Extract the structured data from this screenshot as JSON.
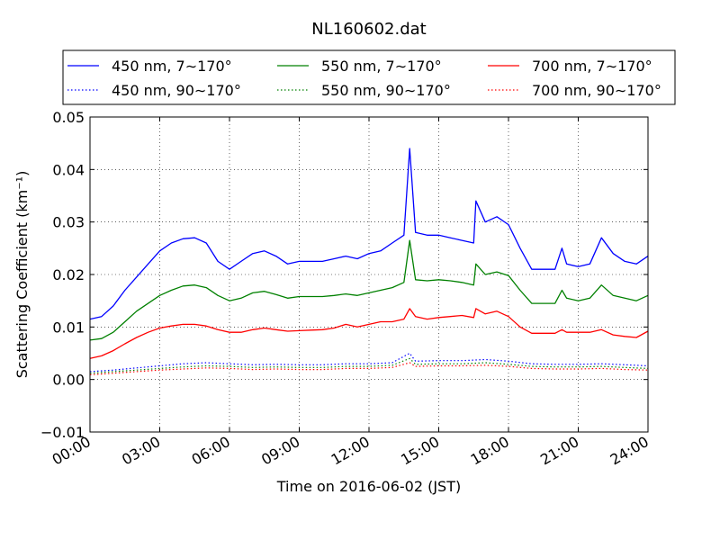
{
  "chart_data": {
    "type": "line",
    "title": "NL160602.dat",
    "xlabel": "Time on 2016-06-02 (JST)",
    "ylabel": "Scattering Coefficient (km⁻¹)",
    "xlim": [
      0,
      24
    ],
    "ylim": [
      -0.01,
      0.05
    ],
    "x_ticks": [
      0,
      3,
      6,
      9,
      12,
      15,
      18,
      21,
      24
    ],
    "x_tick_labels": [
      "00:00",
      "03:00",
      "06:00",
      "09:00",
      "12:00",
      "15:00",
      "18:00",
      "21:00",
      "24:00"
    ],
    "y_ticks": [
      -0.01,
      0.0,
      0.01,
      0.02,
      0.03,
      0.04,
      0.05
    ],
    "y_tick_labels": [
      "−0.01",
      "0.00",
      "0.01",
      "0.02",
      "0.03",
      "0.04",
      "0.05"
    ],
    "grid": true,
    "legend_position": "top",
    "series": [
      {
        "name": "450 nm, 7∼170°",
        "color": "#0000ff",
        "style": "solid",
        "x": [
          0,
          0.5,
          1,
          1.5,
          2,
          2.5,
          3,
          3.5,
          4,
          4.5,
          5,
          5.5,
          6,
          6.5,
          7,
          7.5,
          8,
          8.5,
          9,
          9.5,
          10,
          10.5,
          11,
          11.5,
          12,
          12.5,
          13,
          13.5,
          13.75,
          14,
          14.5,
          15,
          15.5,
          16,
          16.5,
          16.6,
          17,
          17.5,
          18,
          18.5,
          19,
          19.5,
          20,
          20.3,
          20.5,
          21,
          21.5,
          22,
          22.5,
          23,
          23.5,
          24
        ],
        "y": [
          0.0115,
          0.012,
          0.014,
          0.017,
          0.0195,
          0.022,
          0.0245,
          0.026,
          0.0268,
          0.027,
          0.026,
          0.0225,
          0.021,
          0.0225,
          0.024,
          0.0245,
          0.0235,
          0.022,
          0.0225,
          0.0225,
          0.0225,
          0.023,
          0.0235,
          0.023,
          0.024,
          0.0245,
          0.026,
          0.0275,
          0.044,
          0.028,
          0.0275,
          0.0275,
          0.027,
          0.0265,
          0.026,
          0.034,
          0.03,
          0.031,
          0.0295,
          0.025,
          0.021,
          0.021,
          0.021,
          0.025,
          0.022,
          0.0215,
          0.022,
          0.027,
          0.024,
          0.0225,
          0.022,
          0.0235
        ]
      },
      {
        "name": "550 nm, 7∼170°",
        "color": "#008000",
        "style": "solid",
        "x": [
          0,
          0.5,
          1,
          1.5,
          2,
          2.5,
          3,
          3.5,
          4,
          4.5,
          5,
          5.5,
          6,
          6.5,
          7,
          7.5,
          8,
          8.5,
          9,
          9.5,
          10,
          10.5,
          11,
          11.5,
          12,
          12.5,
          13,
          13.5,
          13.75,
          14,
          14.5,
          15,
          15.5,
          16,
          16.5,
          16.6,
          17,
          17.5,
          18,
          18.5,
          19,
          19.5,
          20,
          20.3,
          20.5,
          21,
          21.5,
          22,
          22.5,
          23,
          23.5,
          24
        ],
        "y": [
          0.0075,
          0.0078,
          0.009,
          0.011,
          0.013,
          0.0145,
          0.016,
          0.017,
          0.0178,
          0.018,
          0.0175,
          0.016,
          0.015,
          0.0155,
          0.0165,
          0.0168,
          0.0162,
          0.0155,
          0.0158,
          0.0158,
          0.0158,
          0.016,
          0.0163,
          0.016,
          0.0165,
          0.017,
          0.0175,
          0.0185,
          0.0265,
          0.019,
          0.0188,
          0.019,
          0.0188,
          0.0185,
          0.018,
          0.022,
          0.02,
          0.0205,
          0.0198,
          0.017,
          0.0145,
          0.0145,
          0.0145,
          0.017,
          0.0155,
          0.015,
          0.0155,
          0.018,
          0.016,
          0.0155,
          0.015,
          0.016
        ]
      },
      {
        "name": "700 nm, 7∼170°",
        "color": "#ff0000",
        "style": "solid",
        "x": [
          0,
          0.5,
          1,
          1.5,
          2,
          2.5,
          3,
          3.5,
          4,
          4.5,
          5,
          5.5,
          6,
          6.5,
          7,
          7.5,
          8,
          8.5,
          9,
          9.5,
          10,
          10.5,
          11,
          11.5,
          12,
          12.5,
          13,
          13.5,
          13.75,
          14,
          14.5,
          15,
          15.5,
          16,
          16.5,
          16.6,
          17,
          17.5,
          18,
          18.5,
          19,
          19.5,
          20,
          20.3,
          20.5,
          21,
          21.5,
          22,
          22.5,
          23,
          23.5,
          24
        ],
        "y": [
          0.004,
          0.0045,
          0.0055,
          0.0068,
          0.008,
          0.009,
          0.0098,
          0.0102,
          0.0105,
          0.0105,
          0.0102,
          0.0095,
          0.009,
          0.009,
          0.0095,
          0.0098,
          0.0095,
          0.0092,
          0.0093,
          0.0094,
          0.0095,
          0.0098,
          0.0105,
          0.01,
          0.0105,
          0.011,
          0.011,
          0.0115,
          0.0135,
          0.012,
          0.0115,
          0.0118,
          0.012,
          0.0122,
          0.0118,
          0.0135,
          0.0125,
          0.013,
          0.012,
          0.01,
          0.0088,
          0.0088,
          0.0088,
          0.0095,
          0.009,
          0.009,
          0.009,
          0.0095,
          0.0085,
          0.0082,
          0.008,
          0.0092
        ]
      },
      {
        "name": "450 nm, 90∼170°",
        "color": "#0000ff",
        "style": "dotted",
        "x": [
          0,
          1,
          2,
          3,
          4,
          5,
          6,
          7,
          8,
          9,
          10,
          11,
          12,
          13,
          13.75,
          14,
          15,
          16,
          17,
          18,
          19,
          20,
          21,
          22,
          23,
          24
        ],
        "y": [
          0.0015,
          0.0018,
          0.0022,
          0.0026,
          0.003,
          0.0032,
          0.003,
          0.0028,
          0.0029,
          0.0028,
          0.0028,
          0.003,
          0.003,
          0.0032,
          0.005,
          0.0035,
          0.0036,
          0.0036,
          0.0038,
          0.0035,
          0.003,
          0.0029,
          0.0029,
          0.003,
          0.0028,
          0.0026
        ]
      },
      {
        "name": "550 nm, 90∼170°",
        "color": "#008000",
        "style": "dotted",
        "x": [
          0,
          1,
          2,
          3,
          4,
          5,
          6,
          7,
          8,
          9,
          10,
          11,
          12,
          13,
          13.75,
          14,
          15,
          16,
          17,
          18,
          19,
          20,
          21,
          22,
          23,
          24
        ],
        "y": [
          0.0012,
          0.0015,
          0.0018,
          0.0021,
          0.0024,
          0.0026,
          0.0025,
          0.0023,
          0.0024,
          0.0023,
          0.0023,
          0.0025,
          0.0025,
          0.0027,
          0.004,
          0.0029,
          0.003,
          0.003,
          0.0032,
          0.0029,
          0.0025,
          0.0024,
          0.0024,
          0.0025,
          0.0023,
          0.0021
        ]
      },
      {
        "name": "700 nm, 90∼170°",
        "color": "#ff0000",
        "style": "dotted",
        "x": [
          0,
          1,
          2,
          3,
          4,
          5,
          6,
          7,
          8,
          9,
          10,
          11,
          12,
          13,
          13.75,
          14,
          15,
          16,
          17,
          18,
          19,
          20,
          21,
          22,
          23,
          24
        ],
        "y": [
          0.0009,
          0.0012,
          0.0015,
          0.0018,
          0.002,
          0.0022,
          0.0021,
          0.0019,
          0.002,
          0.0019,
          0.0019,
          0.0021,
          0.0021,
          0.0023,
          0.0032,
          0.0025,
          0.0026,
          0.0026,
          0.0027,
          0.0025,
          0.0021,
          0.002,
          0.002,
          0.0021,
          0.0019,
          0.0018
        ]
      }
    ]
  }
}
